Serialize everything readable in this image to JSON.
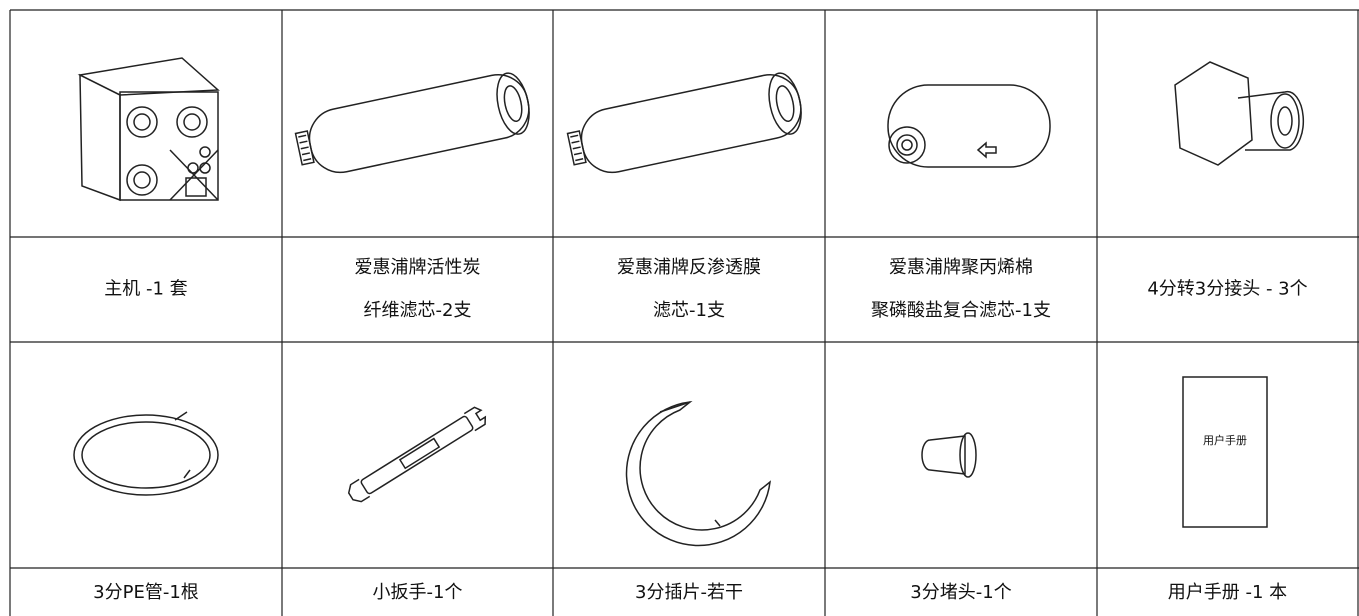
{
  "table": {
    "rows": [
      {
        "items": [
          {
            "label": [
              "主机 -1 套"
            ]
          },
          {
            "label": [
              "爱惠浦牌活性炭",
              "纤维滤芯-2支"
            ]
          },
          {
            "label": [
              "爱惠浦牌反渗透膜",
              "滤芯-1支"
            ]
          },
          {
            "label": [
              "爱惠浦牌聚丙烯棉",
              "聚磷酸盐复合滤芯-1支"
            ]
          },
          {
            "label": [
              "4分转3分接头 - 3个"
            ]
          }
        ]
      },
      {
        "items": [
          {
            "label": [
              "3分PE管-1根"
            ]
          },
          {
            "label": [
              "小扳手-1个"
            ]
          },
          {
            "label": [
              "3分插片-若干"
            ]
          },
          {
            "label": [
              "3分堵头-1个"
            ]
          },
          {
            "label": [
              "用户手册 -1 本"
            ],
            "icon_text": "用户手册"
          }
        ]
      }
    ]
  }
}
